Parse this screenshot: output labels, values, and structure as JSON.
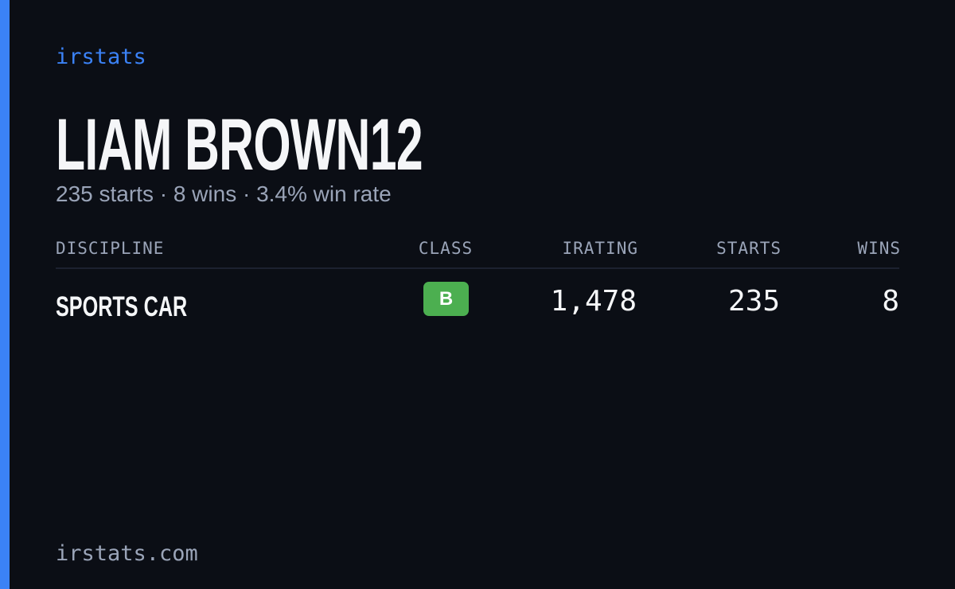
{
  "brand": "irstats",
  "name": "LIAM BROWN12",
  "summary": "235 starts · 8 wins · 3.4% win rate",
  "table": {
    "headers": [
      "DISCIPLINE",
      "CLASS",
      "IRATING",
      "STARTS",
      "WINS"
    ],
    "rows": [
      [
        "SPORTS CAR",
        "B",
        "1,478",
        "235",
        "8"
      ]
    ]
  },
  "footer": "irstats.com"
}
